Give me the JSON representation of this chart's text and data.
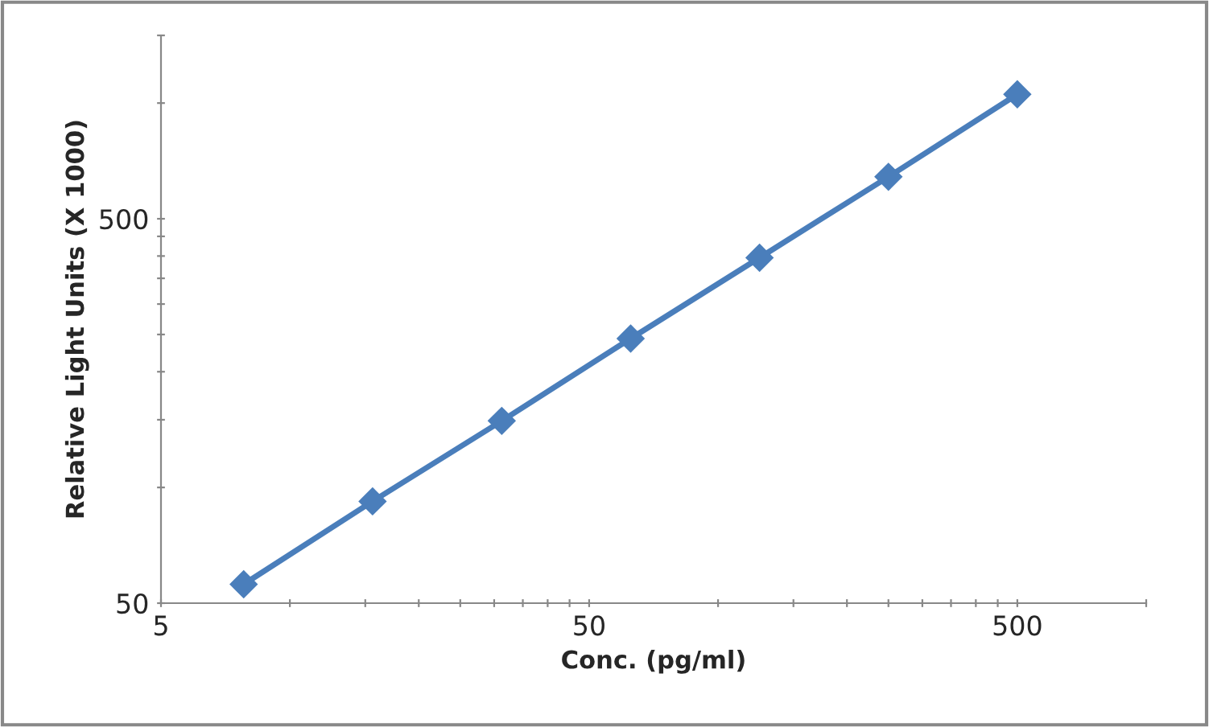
{
  "chart_data": {
    "type": "line",
    "xlabel": "Conc. (pg/ml)",
    "ylabel": "Relative Light Units (X 1000)",
    "log": "xy",
    "marker": "diamond",
    "line_style": "solid",
    "grid": false,
    "legend": false,
    "x": [
      7.8,
      15.6,
      31.25,
      62.5,
      125,
      250,
      500
    ],
    "series": [
      {
        "color": "#4a7ebb",
        "values": [
          56,
          92,
          149,
          244,
          396,
          643,
          1054
        ]
      }
    ],
    "xlim": [
      5,
      1000
    ],
    "ylim": [
      50,
      1500
    ],
    "xticks": [
      5,
      {
        "value": 10,
        "label": null
      },
      {
        "value": 15,
        "label": null
      },
      {
        "value": 20,
        "label": null
      },
      {
        "value": 25,
        "label": null
      },
      {
        "value": 30,
        "label": null
      },
      {
        "value": 35,
        "label": null
      },
      {
        "value": 40,
        "label": null
      },
      {
        "value": 45,
        "label": null
      },
      50,
      {
        "value": 100,
        "label": null
      },
      {
        "value": 150,
        "label": null
      },
      {
        "value": 200,
        "label": null
      },
      {
        "value": 250,
        "label": null
      },
      {
        "value": 300,
        "label": null
      },
      {
        "value": 350,
        "label": null
      },
      {
        "value": 400,
        "label": null
      },
      {
        "value": 450,
        "label": null
      },
      500,
      {
        "value": 1000,
        "label": null
      }
    ],
    "yticks": [
      50,
      {
        "value": 100,
        "label": null
      },
      {
        "value": 150,
        "label": null
      },
      {
        "value": 200,
        "label": null
      },
      {
        "value": 250,
        "label": null
      },
      {
        "value": 300,
        "label": null
      },
      {
        "value": 350,
        "label": null
      },
      {
        "value": 400,
        "label": null
      },
      {
        "value": 450,
        "label": null
      },
      500,
      {
        "value": 1000,
        "label": null
      },
      {
        "value": 1500,
        "label": null
      }
    ]
  }
}
